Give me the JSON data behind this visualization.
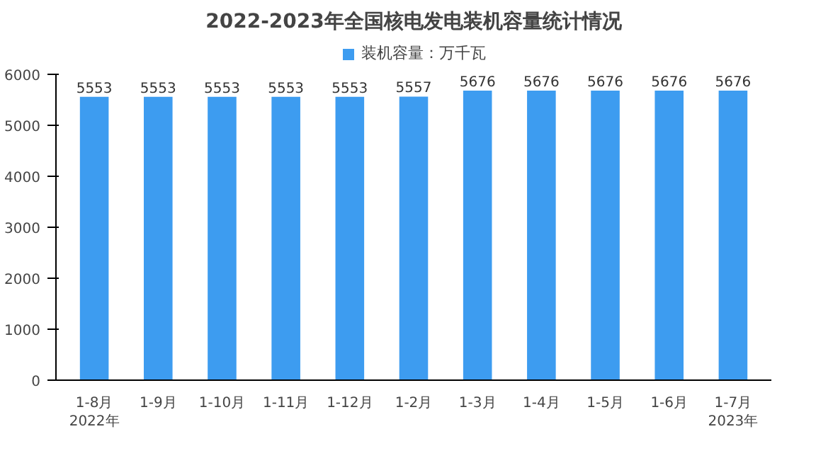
{
  "chart_data": {
    "type": "bar",
    "title": "2022-2023年全国核电发电装机容量统计情况",
    "categories": [
      "1-8月\n2022年",
      "1-9月",
      "1-10月",
      "1-11月",
      "1-12月",
      "1-2月",
      "1-3月",
      "1-4月",
      "1-5月",
      "1-6月",
      "1-7月\n2023年"
    ],
    "series": [
      {
        "name": "装机容量：万千瓦",
        "color": "#3d9cf0",
        "values": [
          5553,
          5553,
          5553,
          5553,
          5553,
          5557,
          5676,
          5676,
          5676,
          5676,
          5676
        ]
      }
    ],
    "ylim": [
      0,
      6000
    ],
    "yticks": [
      0,
      1000,
      2000,
      3000,
      4000,
      5000,
      6000
    ],
    "data_labels": true,
    "legend": "top",
    "grid": false
  }
}
